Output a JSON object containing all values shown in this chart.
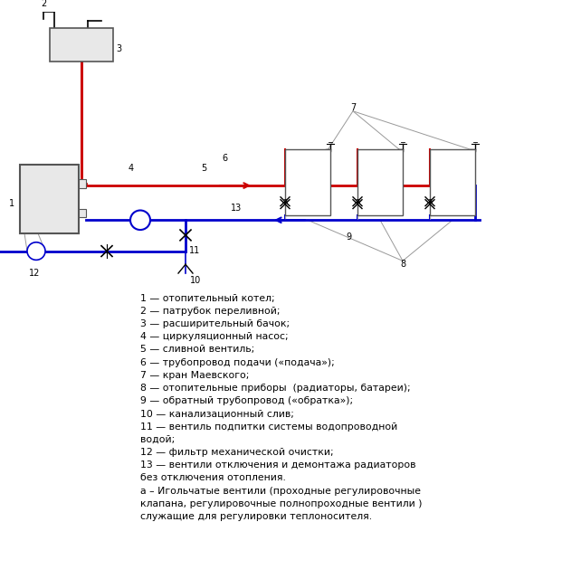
{
  "bg_color": "#ffffff",
  "red": "#cc0000",
  "blue": "#0000cc",
  "gray": "#999999",
  "dark_gray": "#555555",
  "black": "#000000",
  "legend_lines": [
    [
      "1 — отопительный котел;",
      false
    ],
    [
      "2 — патрубок переливной;",
      false
    ],
    [
      "3 — расширительный бачок;",
      false
    ],
    [
      "4 — циркуляционный насос;",
      false
    ],
    [
      "5 — сливной вентиль;",
      false
    ],
    [
      "6 — трубопровод подачи («подача»);",
      false
    ],
    [
      "7 — кран Маевского;",
      false
    ],
    [
      "8 — отопительные приборы  (радиаторы, батареи);",
      false
    ],
    [
      "9 — обратный трубопровод («обратка»);",
      false
    ],
    [
      "10 — канализационный слив;",
      false
    ],
    [
      "11 — вентиль подпитки системы водопроводной",
      true
    ],
    [
      "водой;",
      false
    ],
    [
      "12 — фильтр механической очистки;",
      false
    ],
    [
      "13 — вентили отключения и демонтажа радиаторов",
      true
    ],
    [
      "без отключения отопления.",
      false
    ],
    [
      "а – Игольчатые вентили (проходные регулировочные",
      true
    ],
    [
      "клапана, регулировочные полнопроходные вентили )",
      false
    ],
    [
      "служащие для регулировки теплоносителя.",
      false
    ]
  ]
}
